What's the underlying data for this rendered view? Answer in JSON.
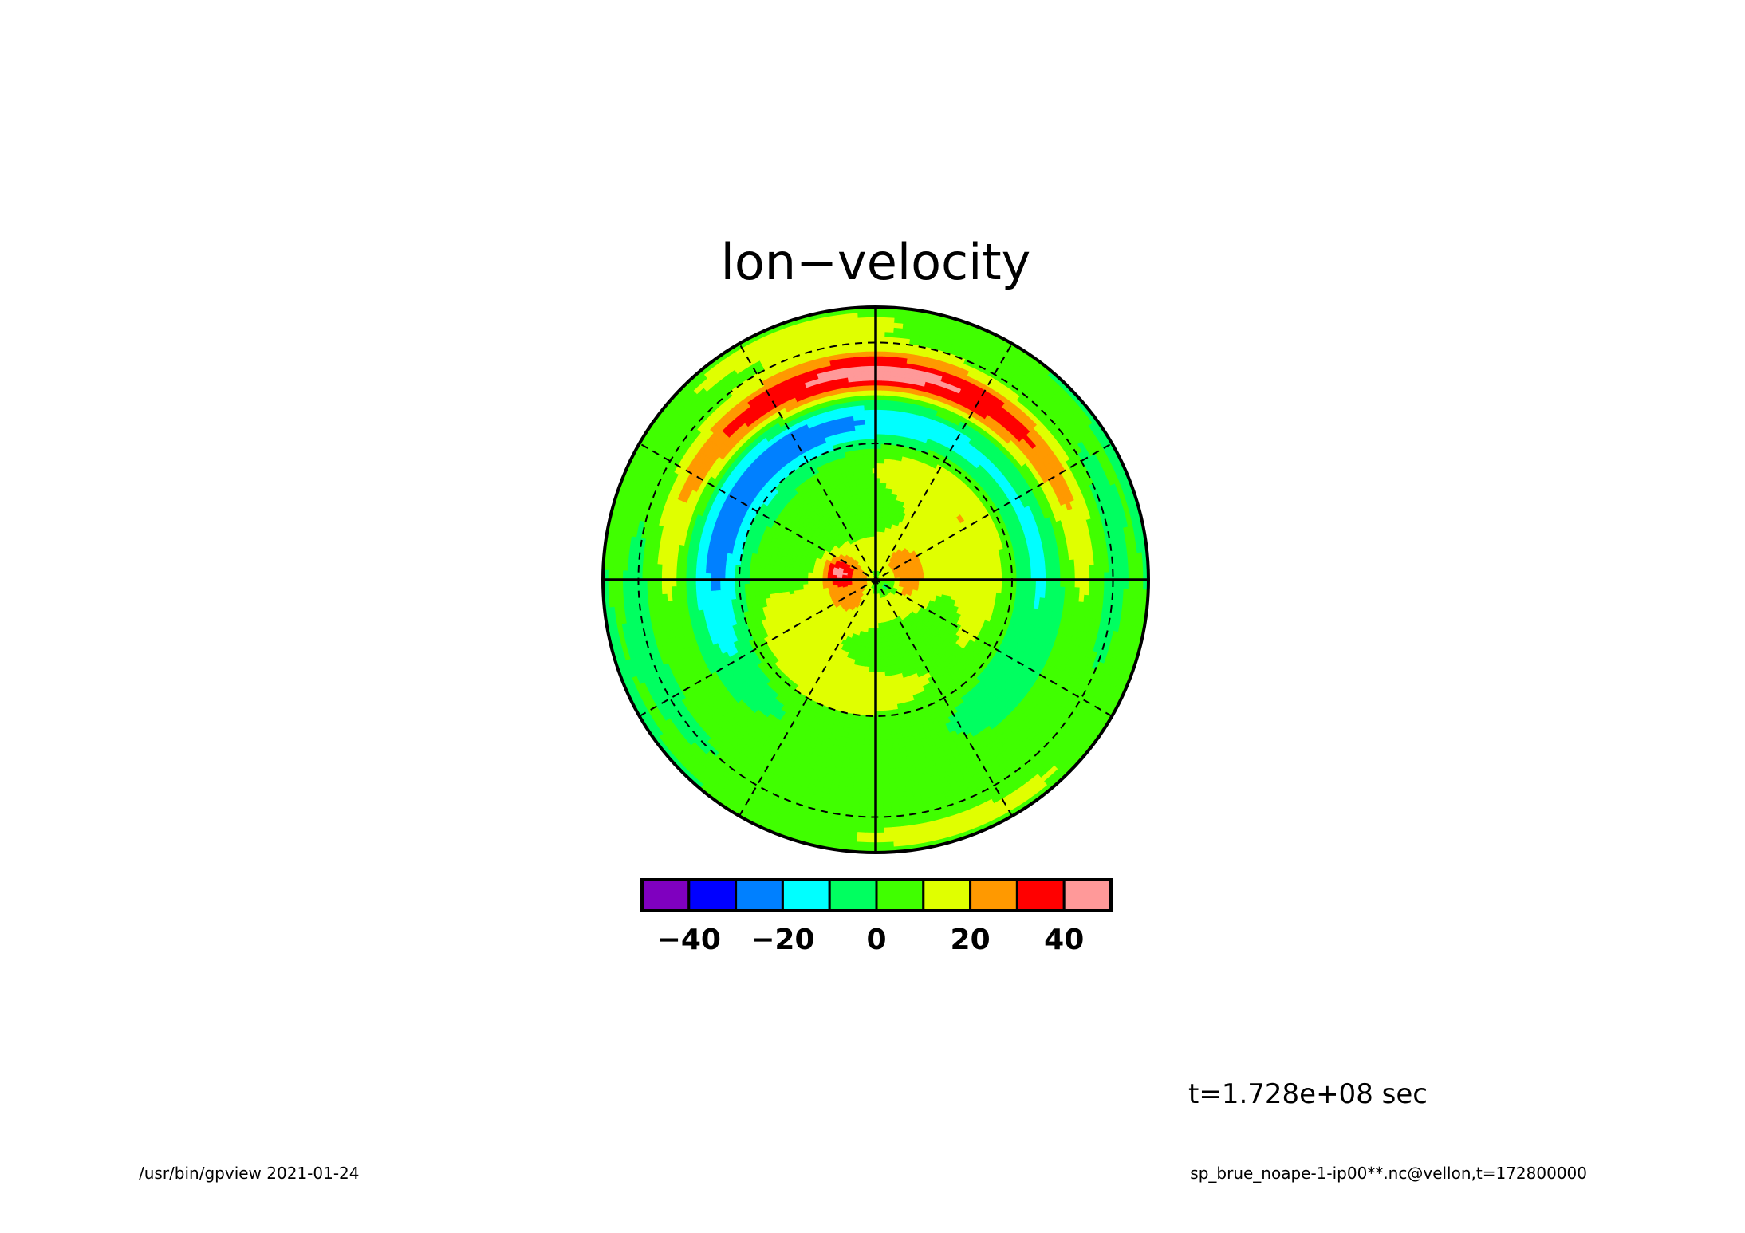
{
  "chart_data": {
    "type": "heatmap",
    "projection": "polar-stereographic",
    "title": "lon−velocity",
    "colorbar": {
      "levels": [
        -50,
        -40,
        -30,
        -20,
        -10,
        0,
        10,
        20,
        30,
        40,
        50
      ],
      "colors": [
        "#7f00bf",
        "#0000ff",
        "#0080ff",
        "#00ffff",
        "#00ff60",
        "#40ff00",
        "#e0ff00",
        "#ff9900",
        "#ff0000",
        "#ff9999"
      ],
      "tick_values": [
        -40,
        -20,
        0,
        20,
        40
      ],
      "tick_labels": [
        "−40",
        "−20",
        "0",
        "20",
        "40"
      ]
    },
    "time_label": "t=1.728e+08 sec",
    "grid": true
  },
  "footer": {
    "left": "/usr/bin/gpview  2021-01-24",
    "right": "sp_brue_noape-1-ip00**.nc@vellon,t=172800000"
  }
}
